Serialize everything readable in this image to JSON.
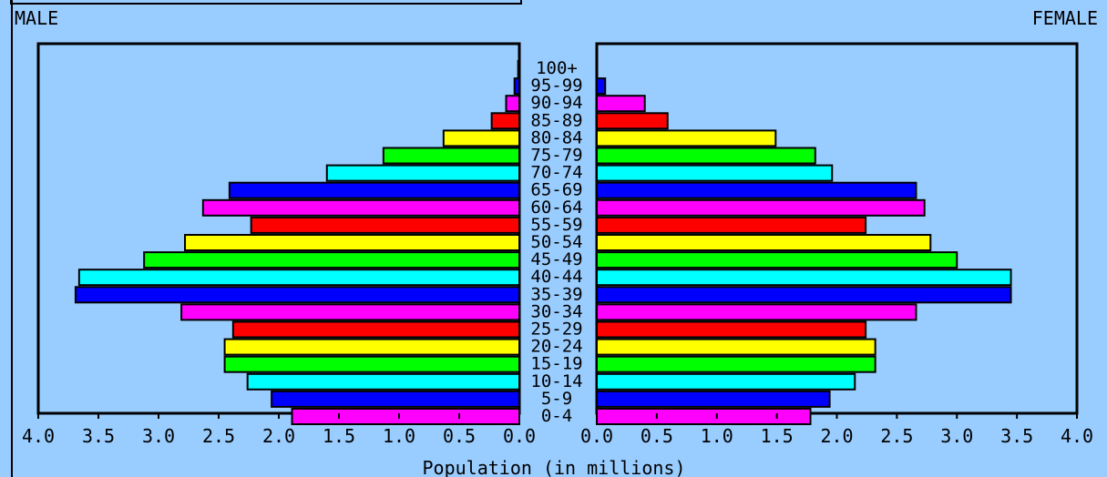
{
  "chart_data": {
    "type": "bar",
    "subtype": "population-pyramid",
    "left_label": "MALE",
    "right_label": "FEMALE",
    "xlabel": "Population (in millions)",
    "xlim": [
      0,
      4.0
    ],
    "x_ticks": [
      "0.0",
      "0.5",
      "1.0",
      "1.5",
      "2.0",
      "2.5",
      "3.0",
      "3.5",
      "4.0"
    ],
    "grid": false,
    "categories": [
      "0-4",
      "5-9",
      "10-14",
      "15-19",
      "20-24",
      "25-29",
      "30-34",
      "35-39",
      "40-44",
      "45-49",
      "50-54",
      "55-59",
      "60-64",
      "65-69",
      "70-74",
      "75-79",
      "80-84",
      "85-89",
      "90-94",
      "95-99",
      "100+"
    ],
    "series": [
      {
        "name": "MALE",
        "values": [
          1.89,
          2.06,
          2.26,
          2.45,
          2.45,
          2.38,
          2.81,
          3.69,
          3.66,
          3.12,
          2.78,
          2.23,
          2.63,
          2.41,
          1.6,
          1.13,
          0.63,
          0.23,
          0.11,
          0.04,
          0.01
        ]
      },
      {
        "name": "FEMALE",
        "values": [
          1.78,
          1.94,
          2.15,
          2.32,
          2.32,
          2.24,
          2.66,
          3.45,
          3.45,
          3.0,
          2.78,
          2.24,
          2.73,
          2.66,
          1.96,
          1.82,
          1.49,
          0.59,
          0.4,
          0.07,
          0.0
        ]
      }
    ],
    "bar_colors": [
      "#ff00ff",
      "#0000ff",
      "#00ffff",
      "#00ff00",
      "#ffff00",
      "#ff0000"
    ]
  }
}
